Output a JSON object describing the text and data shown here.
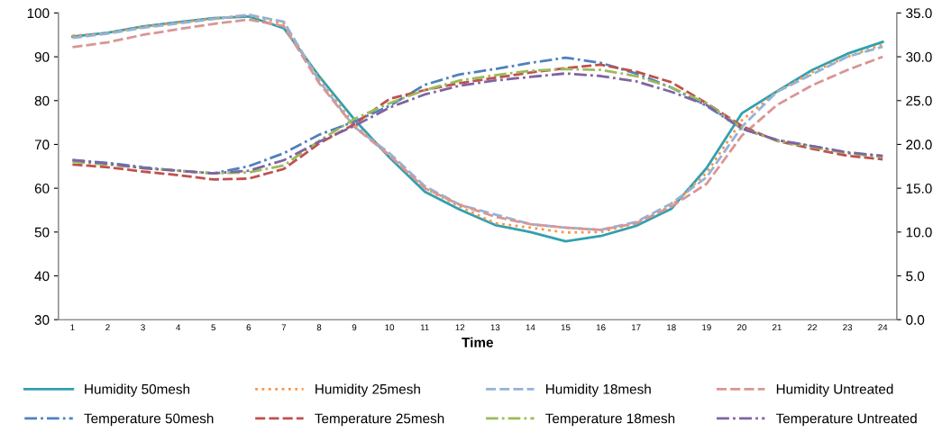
{
  "chart_data": {
    "type": "line",
    "xlabel": "Time",
    "categories": [
      "1",
      "2",
      "3",
      "4",
      "5",
      "6",
      "7",
      "8",
      "9",
      "10",
      "11",
      "12",
      "13",
      "14",
      "15",
      "16",
      "17",
      "18",
      "19",
      "20",
      "21",
      "22",
      "23",
      "24"
    ],
    "ylim": [
      30,
      100
    ],
    "yticks": [
      30,
      40,
      50,
      60,
      70,
      80,
      90,
      100
    ],
    "y2lim": [
      0,
      35
    ],
    "y2ticks": [
      {
        "value": 0,
        "label": "0.0"
      },
      {
        "value": 5,
        "label": "5.0"
      },
      {
        "value": 10,
        "label": "10.0"
      },
      {
        "value": 15,
        "label": "15.0"
      },
      {
        "value": 20,
        "label": "20.0"
      },
      {
        "value": 25,
        "label": "25.0"
      },
      {
        "value": 30,
        "label": "30.0"
      },
      {
        "value": 35,
        "label": "35.0"
      }
    ],
    "grid": false,
    "legend": "bottom",
    "marker": "none",
    "series": [
      {
        "name": "Humidity 50mesh",
        "color": "#31a0b0",
        "line_style": "solid",
        "values": [
          94.6,
          95.5,
          96.9,
          97.9,
          98.8,
          99.2,
          96.5,
          85.6,
          75.7,
          67.0,
          59.2,
          55.1,
          51.6,
          50.0,
          47.9,
          49.1,
          51.4,
          55.3,
          64.6,
          77.1,
          82.1,
          87.0,
          90.7,
          93.4
        ]
      },
      {
        "name": "Humidity 25mesh",
        "color": "#f79646",
        "line_style": "dotted",
        "values": [
          94.8,
          95.4,
          96.8,
          97.8,
          98.7,
          99.5,
          97.5,
          85.0,
          74.5,
          67.5,
          60.0,
          55.8,
          52.0,
          51.0,
          49.9,
          50.0,
          52.0,
          56.0,
          63.5,
          75.5,
          82.0,
          86.5,
          90.0,
          92.8
        ]
      },
      {
        "name": "Humidity 18mesh",
        "color": "#95b3d7",
        "line_style": "dashed",
        "values": [
          94.3,
          95.3,
          96.6,
          97.6,
          98.6,
          99.6,
          98.0,
          84.5,
          74.0,
          68.0,
          60.5,
          56.2,
          54.0,
          51.8,
          51.0,
          50.5,
          52.3,
          56.5,
          62.5,
          74.0,
          82.0,
          86.0,
          90.0,
          92.3
        ]
      },
      {
        "name": "Humidity Untreated",
        "color": "#d99694",
        "line_style": "dashed",
        "values": [
          92.2,
          93.3,
          95.0,
          96.3,
          97.5,
          98.5,
          97.0,
          84.0,
          74.0,
          67.5,
          60.0,
          56.2,
          53.5,
          51.8,
          51.0,
          50.5,
          52.0,
          55.8,
          61.0,
          72.0,
          79.0,
          83.5,
          87.0,
          90.0
        ]
      },
      {
        "name": "Temperature 50mesh",
        "color": "#4f81bd",
        "line_style": "dashdot",
        "axis": "y2",
        "values": [
          18.2,
          17.9,
          17.4,
          17.0,
          16.7,
          17.5,
          19.0,
          21.1,
          22.6,
          24.4,
          26.8,
          28.0,
          28.6,
          29.3,
          29.9,
          29.3,
          28.1,
          26.5,
          24.4,
          21.8,
          20.5,
          19.8,
          19.0,
          18.6
        ]
      },
      {
        "name": "Temperature 25mesh",
        "color": "#c0504d",
        "line_style": "dashed",
        "axis": "y2",
        "values": [
          17.7,
          17.4,
          16.9,
          16.5,
          16.0,
          16.1,
          17.2,
          20.1,
          22.3,
          25.2,
          26.2,
          27.0,
          27.6,
          28.2,
          28.7,
          29.1,
          28.3,
          27.1,
          24.7,
          22.1,
          20.4,
          19.5,
          18.7,
          18.3
        ]
      },
      {
        "name": "Temperature 18mesh",
        "color": "#9bbb59",
        "line_style": "dashdot",
        "axis": "y2",
        "values": [
          18.0,
          17.7,
          17.3,
          17.0,
          16.7,
          16.8,
          17.6,
          20.4,
          22.9,
          24.7,
          26.2,
          27.3,
          27.9,
          28.4,
          28.6,
          28.5,
          27.8,
          26.5,
          24.7,
          21.9,
          20.4,
          19.7,
          19.0,
          18.6
        ]
      },
      {
        "name": "Temperature Untreated",
        "color": "#8064a2",
        "line_style": "dashdot",
        "axis": "y2",
        "values": [
          18.2,
          17.8,
          17.3,
          17.0,
          16.7,
          17.0,
          18.2,
          20.3,
          22.1,
          24.2,
          25.7,
          26.7,
          27.3,
          27.7,
          28.1,
          27.8,
          27.2,
          26.0,
          24.5,
          21.8,
          20.5,
          19.8,
          19.1,
          18.7
        ]
      }
    ]
  }
}
